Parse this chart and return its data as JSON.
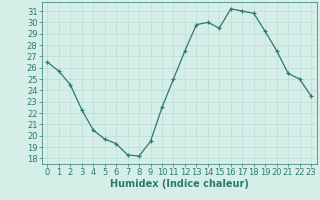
{
  "x": [
    0,
    1,
    2,
    3,
    4,
    5,
    6,
    7,
    8,
    9,
    10,
    11,
    12,
    13,
    14,
    15,
    16,
    17,
    18,
    19,
    20,
    21,
    22,
    23
  ],
  "y": [
    26.5,
    25.7,
    24.5,
    22.3,
    20.5,
    19.7,
    19.3,
    18.3,
    18.2,
    19.5,
    22.5,
    25.0,
    27.5,
    29.8,
    30.0,
    29.5,
    31.2,
    31.0,
    30.8,
    29.2,
    27.5,
    25.5,
    25.0,
    23.5
  ],
  "xlim": [
    -0.5,
    23.5
  ],
  "ylim": [
    17.5,
    31.8
  ],
  "yticks": [
    18,
    19,
    20,
    21,
    22,
    23,
    24,
    25,
    26,
    27,
    28,
    29,
    30,
    31
  ],
  "xticks": [
    0,
    1,
    2,
    3,
    4,
    5,
    6,
    7,
    8,
    9,
    10,
    11,
    12,
    13,
    14,
    15,
    16,
    17,
    18,
    19,
    20,
    21,
    22,
    23
  ],
  "xlabel": "Humidex (Indice chaleur)",
  "line_color": "#2d7a6b",
  "marker": "+",
  "bg_color": "#d5eee8",
  "grid_color": "#b8ddd5",
  "tick_fontsize": 6,
  "label_fontsize": 7
}
